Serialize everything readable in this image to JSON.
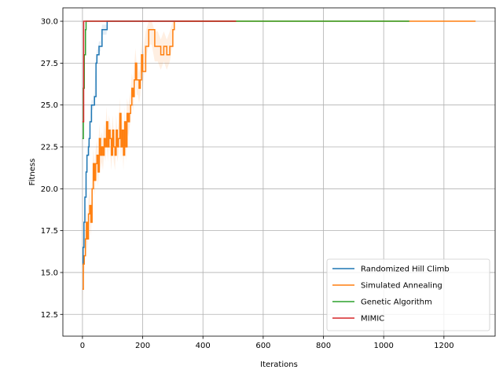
{
  "chart_data": {
    "type": "line",
    "title": "",
    "xlabel": "Iterations",
    "ylabel": "Fitness",
    "xlim": [
      -65,
      1370
    ],
    "ylim": [
      11.2,
      30.8
    ],
    "xticks": [
      0,
      200,
      400,
      600,
      800,
      1000,
      1200
    ],
    "xtick_labels": [
      "0",
      "200",
      "400",
      "600",
      "800",
      "1000",
      "1200"
    ],
    "yticks": [
      12.5,
      15.0,
      17.5,
      20.0,
      22.5,
      25.0,
      27.5,
      30.0
    ],
    "ytick_labels": [
      "12.5",
      "15.0",
      "17.5",
      "20.0",
      "22.5",
      "25.0",
      "27.5",
      "30.0"
    ],
    "grid": true,
    "legend_position": "lower-right",
    "series": [
      {
        "name": "Randomized Hill Climb",
        "color": "#1f77b4",
        "x": [
          0,
          2,
          5,
          8,
          12,
          15,
          20,
          22,
          25,
          30,
          35,
          40,
          45,
          48,
          50,
          55,
          60,
          65,
          70,
          75,
          80,
          82,
          85,
          90,
          100,
          200,
          300,
          400,
          510
        ],
        "y": [
          15.5,
          16.5,
          18.0,
          19.5,
          21.0,
          22.0,
          22.5,
          23.0,
          24.0,
          25.0,
          25.0,
          25.5,
          27.5,
          28.0,
          28.0,
          28.5,
          28.5,
          29.5,
          29.5,
          29.5,
          29.5,
          30.0,
          30.0,
          30.0,
          30.0,
          30.0,
          30.0,
          30.0,
          30.0
        ]
      },
      {
        "name": "Simulated Annealing",
        "color": "#ff7f0e",
        "x": [
          0,
          3,
          6,
          10,
          13,
          16,
          20,
          24,
          28,
          32,
          36,
          40,
          44,
          48,
          52,
          56,
          60,
          64,
          68,
          72,
          76,
          80,
          84,
          88,
          92,
          96,
          100,
          104,
          108,
          112,
          116,
          120,
          124,
          128,
          132,
          136,
          140,
          144,
          148,
          152,
          156,
          160,
          164,
          168,
          172,
          176,
          180,
          184,
          188,
          192,
          196,
          200,
          210,
          220,
          230,
          240,
          250,
          260,
          270,
          280,
          290,
          300,
          305,
          400,
          600,
          800,
          1000,
          1200,
          1305
        ],
        "y": [
          14.0,
          15.5,
          16.0,
          17.0,
          18.0,
          17.0,
          18.5,
          19.0,
          18.0,
          20.0,
          21.5,
          20.5,
          21.5,
          22.0,
          21.0,
          23.0,
          22.0,
          22.5,
          22.0,
          23.0,
          22.5,
          24.0,
          22.5,
          23.5,
          23.0,
          22.0,
          23.5,
          22.5,
          22.0,
          23.5,
          22.5,
          23.0,
          24.5,
          22.5,
          23.5,
          22.0,
          24.0,
          22.5,
          24.5,
          24.0,
          24.5,
          25.0,
          26.0,
          25.5,
          26.5,
          27.5,
          26.5,
          26.5,
          26.0,
          26.5,
          28.0,
          27.0,
          28.5,
          29.5,
          29.5,
          28.5,
          28.5,
          28.0,
          28.5,
          28.0,
          28.5,
          29.5,
          30.0,
          30.0,
          30.0,
          30.0,
          30.0,
          30.0,
          30.0
        ]
      },
      {
        "name": "Genetic Algorithm",
        "color": "#2ca02c",
        "x": [
          0,
          3,
          6,
          10,
          12,
          100,
          300,
          500,
          700,
          900,
          1085
        ],
        "y": [
          23.0,
          26.0,
          28.0,
          29.5,
          30.0,
          30.0,
          30.0,
          30.0,
          30.0,
          30.0,
          30.0
        ]
      },
      {
        "name": "MIMIC",
        "color": "#d62728",
        "x": [
          0,
          4,
          100,
          200,
          300,
          400,
          510
        ],
        "y": [
          24.0,
          30.0,
          30.0,
          30.0,
          30.0,
          30.0,
          30.0
        ]
      }
    ]
  }
}
